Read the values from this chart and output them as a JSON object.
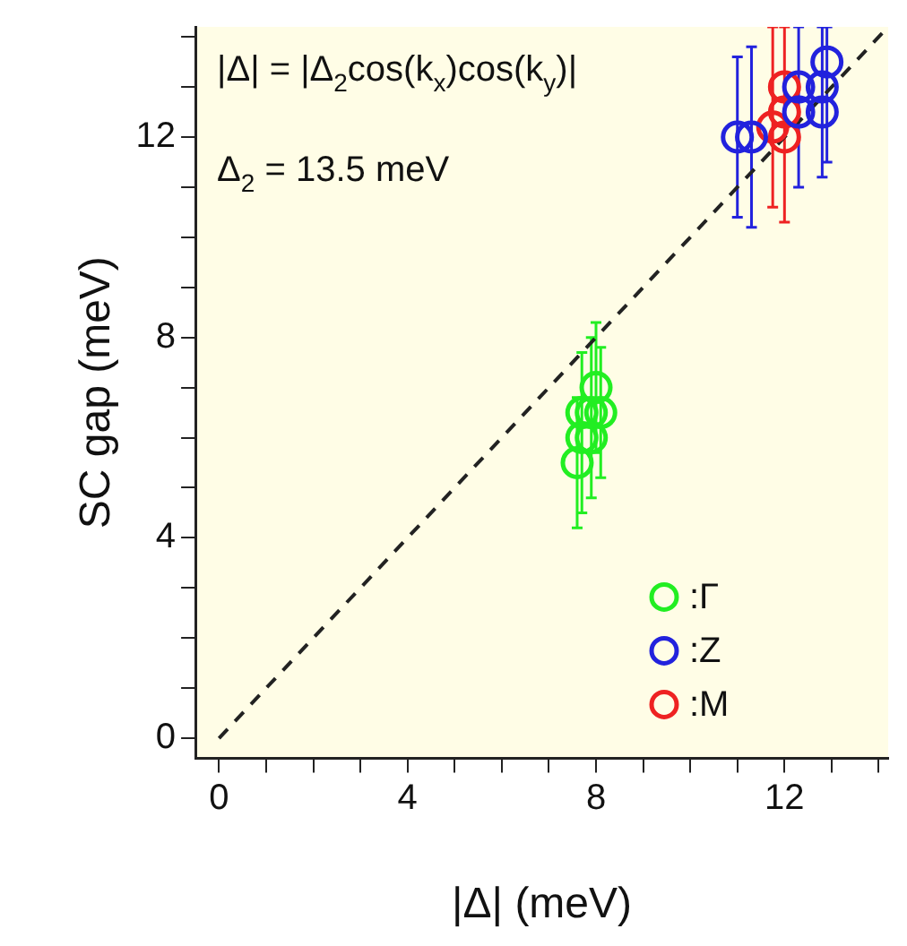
{
  "chart_data": {
    "type": "scatter",
    "xlabel": "|Δ| (meV)",
    "ylabel": "SC gap (meV)",
    "annotations": [
      "|Δ| = |Δ$_{2}$cos(k$_{x}$)cos(k$_{y}$)|",
      "Δ$_{2}$ = 13.5 meV"
    ],
    "xlim": [
      -0.5,
      14.2
    ],
    "ylim": [
      -0.4,
      14.2
    ],
    "xticks": [
      0,
      {
        "value": 1,
        "label": null
      },
      {
        "value": 2,
        "label": null
      },
      {
        "value": 3,
        "label": null
      },
      4,
      {
        "value": 5,
        "label": null
      },
      {
        "value": 6,
        "label": null
      },
      {
        "value": 7,
        "label": null
      },
      8,
      {
        "value": 9,
        "label": null
      },
      {
        "value": 10,
        "label": null
      },
      {
        "value": 11,
        "label": null
      },
      12,
      {
        "value": 13,
        "label": null
      },
      {
        "value": 14,
        "label": null
      }
    ],
    "yticks": [
      0,
      {
        "value": 1,
        "label": null
      },
      {
        "value": 2,
        "label": null
      },
      {
        "value": 3,
        "label": null
      },
      4,
      {
        "value": 5,
        "label": null
      },
      {
        "value": 6,
        "label": null
      },
      {
        "value": 7,
        "label": null
      },
      8,
      {
        "value": 9,
        "label": null
      },
      {
        "value": 10,
        "label": null
      },
      {
        "value": 11,
        "label": null
      },
      12,
      {
        "value": 13,
        "label": null
      },
      {
        "value": 14,
        "label": null
      }
    ],
    "grid": false,
    "legend": "bottom right",
    "marker": "circle",
    "series": [
      {
        "name": ":Γ",
        "color": "#22ee22",
        "x": [
          7.6,
          7.7,
          7.7,
          7.9,
          7.9,
          8.1,
          8.0
        ],
        "values": [
          5.5,
          6.0,
          6.5,
          6.0,
          6.5,
          6.5,
          7.0
        ],
        "errors": [
          1.3,
          [
            4.5,
            7.7
          ],
          null,
          [
            4.8,
            8.0
          ],
          null,
          1.3,
          1.3
        ]
      },
      {
        "name": ":Z",
        "color": "#2222dd",
        "x": [
          11.0,
          11.3,
          12.3,
          12.3,
          12.8,
          12.8,
          12.9
        ],
        "values": [
          12.0,
          12.0,
          12.5,
          13.0,
          12.5,
          13.0,
          13.5
        ],
        "errors": [
          1.6,
          1.8,
          [
            11.0,
            14.2
          ],
          null,
          [
            11.2,
            14.2
          ],
          null,
          [
            11.5,
            14.2
          ]
        ]
      },
      {
        "name": ":M",
        "color": "#ee2222",
        "x": [
          11.75,
          12.0,
          12.0,
          12.0
        ],
        "values": [
          12.2,
          12.0,
          12.5,
          13.0
        ],
        "errors": [
          [
            10.6,
            14.2
          ],
          [
            10.3,
            14.2
          ],
          null,
          null
        ]
      },
      {
        "type": "line",
        "color": "#222222",
        "line_style": "dashed",
        "marker": "none",
        "x": [
          0,
          14.2
        ],
        "values": [
          0,
          14.2
        ]
      }
    ]
  }
}
